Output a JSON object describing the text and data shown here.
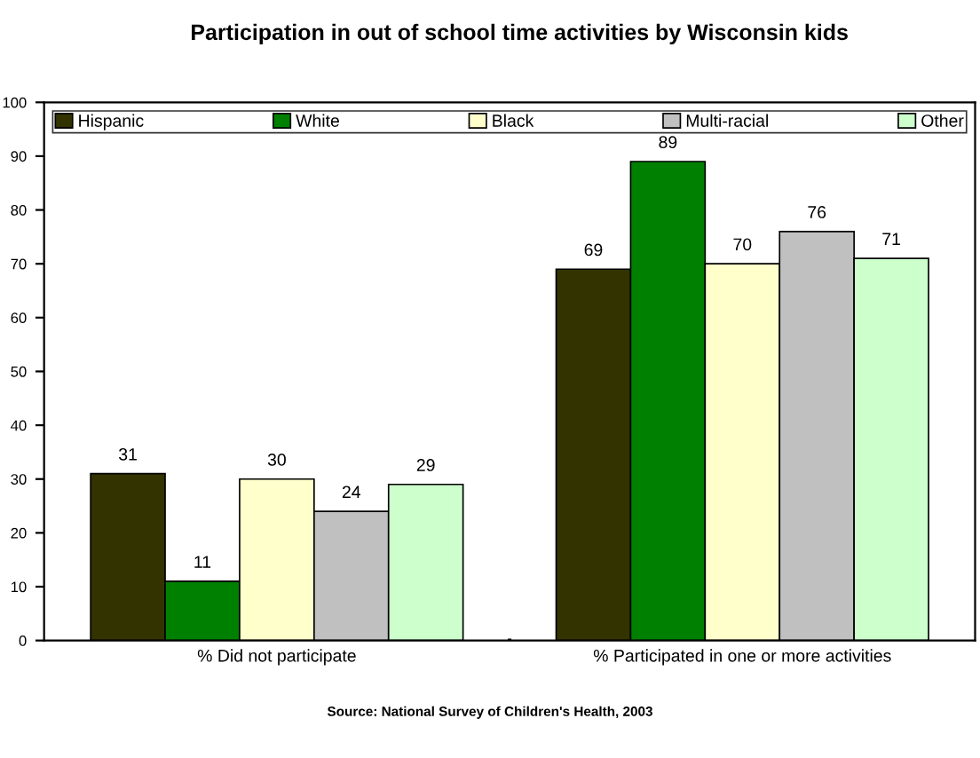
{
  "chart_data": {
    "type": "bar",
    "title": "Participation in out of school time activities by Wisconsin kids",
    "categories": [
      "% Did not participate",
      "% Participated in one or more activities"
    ],
    "series": [
      {
        "name": "Hispanic",
        "color": "#333300",
        "values": [
          31,
          69
        ]
      },
      {
        "name": "White",
        "color": "#008000",
        "values": [
          11,
          89
        ]
      },
      {
        "name": "Black",
        "color": "#ffffcc",
        "values": [
          30,
          70
        ]
      },
      {
        "name": "Multi-racial",
        "color": "#c0c0c0",
        "values": [
          24,
          76
        ]
      },
      {
        "name": "Other",
        "color": "#ccffcc",
        "values": [
          29,
          71
        ]
      }
    ],
    "ylim": [
      0,
      100
    ],
    "yticks": [
      0,
      10,
      20,
      30,
      40,
      50,
      60,
      70,
      80,
      90,
      100
    ],
    "data_labels": true,
    "legend": "top",
    "grid": false,
    "annotations": [
      "Source: National Survey of Children's Health, 2003"
    ]
  }
}
